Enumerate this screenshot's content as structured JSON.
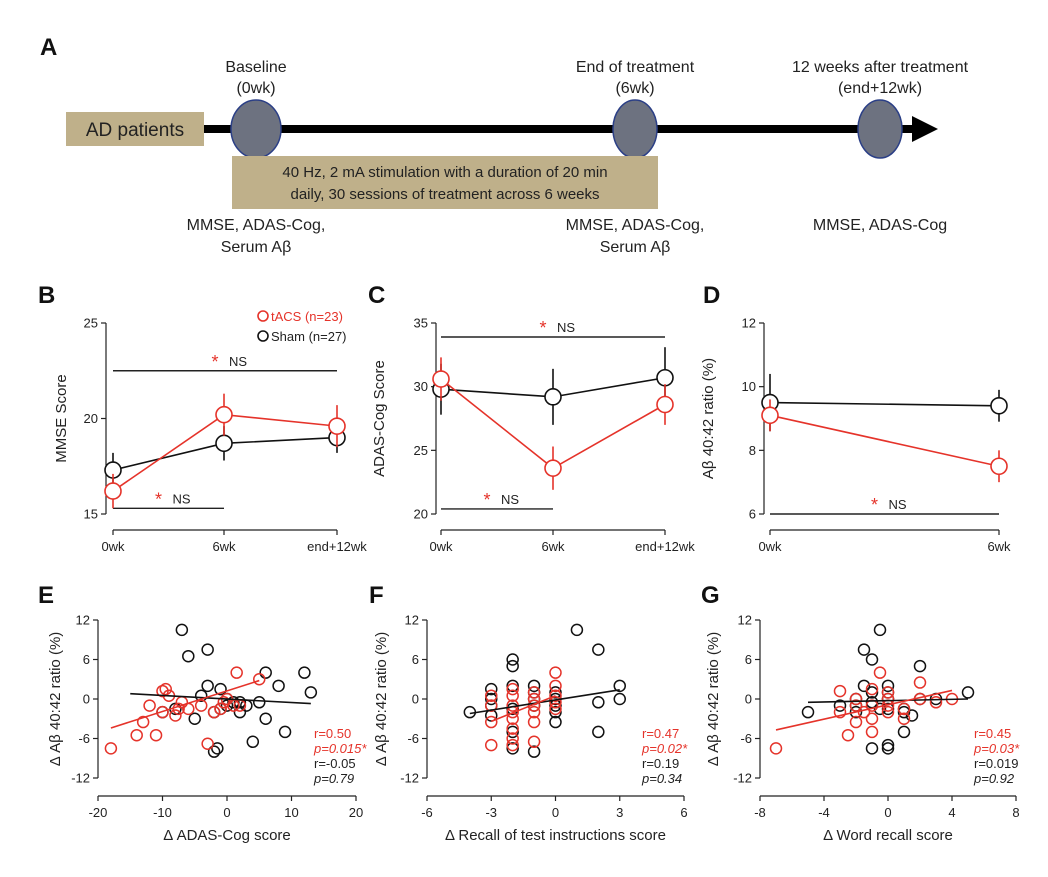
{
  "colors": {
    "tacs": "#e5332a",
    "sham": "#111111",
    "box": "#bfb08a",
    "node": "#6d7280",
    "node_edge": "#2b3f86"
  },
  "timeline": {
    "letter": "A",
    "patients_label": "AD patients",
    "baseline_title_1": "Baseline",
    "baseline_title_2": "(0wk)",
    "end_title_1": "End of treatment",
    "end_title_2": "(6wk)",
    "followup_title_1": "12 weeks after treatment",
    "followup_title_2": "(end+12wk)",
    "stim_line_1": "40 Hz, 2 mA stimulation with a duration of 20 min",
    "stim_line_2": "daily, 30 sessions of treatment across 6 weeks",
    "baseline_meas_1": "MMSE, ADAS-Cog,",
    "baseline_meas_2": "Serum Aβ",
    "end_meas_1": "MMSE, ADAS-Cog,",
    "end_meas_2": "Serum Aβ",
    "followup_meas": "MMSE, ADAS-Cog"
  },
  "legend": {
    "tacs": "tACS (n=23)",
    "sham": "Sham (n=27)"
  },
  "stats": {
    "star": "*",
    "ns": "NS"
  },
  "chart_data": [
    {
      "panel": "B",
      "type": "line",
      "ylabel": "MMSE Score",
      "categories": [
        "0wk",
        "6wk",
        "end+12wk"
      ],
      "ylim": [
        15,
        25
      ],
      "yticks": [
        15,
        20,
        25
      ],
      "series": [
        {
          "name": "tACS (n=23)",
          "values": [
            16.2,
            20.2,
            19.6
          ],
          "err": [
            0.9,
            1.1,
            1.1
          ]
        },
        {
          "name": "Sham (n=27)",
          "values": [
            17.3,
            18.7,
            19.0
          ],
          "err": [
            0.9,
            0.9,
            0.8
          ]
        }
      ],
      "brackets": [
        {
          "from": 0,
          "to": 2,
          "level": 22.5,
          "star": "*",
          "ns": "NS"
        },
        {
          "from": 0,
          "to": 1,
          "level": 15.3,
          "star": "*",
          "ns": "NS"
        }
      ]
    },
    {
      "panel": "C",
      "type": "line",
      "ylabel": "ADAS-Cog Score",
      "categories": [
        "0wk",
        "6wk",
        "end+12wk"
      ],
      "ylim": [
        20,
        35
      ],
      "yticks": [
        20,
        25,
        30,
        35
      ],
      "series": [
        {
          "name": "tACS (n=23)",
          "values": [
            30.6,
            23.6,
            28.6
          ],
          "err": [
            1.7,
            1.7,
            1.6
          ]
        },
        {
          "name": "Sham (n=27)",
          "values": [
            29.8,
            29.2,
            30.7
          ],
          "err": [
            2.0,
            2.2,
            2.4
          ]
        }
      ],
      "brackets": [
        {
          "from": 0,
          "to": 2,
          "level": 33.9,
          "star": "*",
          "ns": "NS"
        },
        {
          "from": 0,
          "to": 1,
          "level": 20.4,
          "star": "*",
          "ns": "NS"
        }
      ]
    },
    {
      "panel": "D",
      "type": "line",
      "ylabel": "Aβ 40:42 ratio (%)",
      "categories": [
        "0wk",
        "6wk"
      ],
      "ylim": [
        6,
        12
      ],
      "yticks": [
        6,
        8,
        10,
        12
      ],
      "series": [
        {
          "name": "tACS (n=23)",
          "values": [
            9.1,
            7.5
          ],
          "err": [
            0.5,
            0.5
          ]
        },
        {
          "name": "Sham (n=27)",
          "values": [
            9.5,
            9.4
          ],
          "err": [
            0.9,
            0.5
          ]
        }
      ],
      "brackets": [
        {
          "from": 0,
          "to": 1,
          "level": 6.0,
          "star": "*",
          "ns": "NS"
        }
      ]
    },
    {
      "panel": "E",
      "type": "scatter",
      "ylabel": "Δ Aβ 40:42 ratio (%)",
      "xlabel": "Δ ADAS-Cog score",
      "xlim": [
        -20,
        20
      ],
      "xticks": [
        -20,
        -10,
        0,
        10,
        20
      ],
      "ylim": [
        -12,
        12
      ],
      "yticks": [
        -12,
        -6,
        0,
        6,
        12
      ],
      "series": [
        {
          "name": "tACS (n=23)",
          "points": [
            [
              -18,
              -7.5
            ],
            [
              -14,
              -5.5
            ],
            [
              -13,
              -3.5
            ],
            [
              -12,
              -1
            ],
            [
              -11,
              -5.5
            ],
            [
              -10,
              1.2
            ],
            [
              -10,
              -2
            ],
            [
              -9.5,
              1.5
            ],
            [
              -9,
              0.5
            ],
            [
              -8,
              -2.5
            ],
            [
              -7.5,
              -1.5
            ],
            [
              -7,
              -0.5
            ],
            [
              -6,
              -1.5
            ],
            [
              -4,
              -1
            ],
            [
              -3,
              -6.8
            ],
            [
              -2,
              -2
            ],
            [
              -1,
              -1.5
            ],
            [
              -0.5,
              -0.5
            ],
            [
              0,
              0
            ],
            [
              1,
              -1
            ],
            [
              1.5,
              4
            ],
            [
              2,
              -1
            ],
            [
              5,
              3
            ]
          ],
          "fit": [
            [
              -18,
              -4.4
            ],
            [
              5,
              2.8
            ]
          ]
        },
        {
          "name": "Sham (n=27)",
          "points": [
            [
              -10,
              -2
            ],
            [
              -7,
              10.5
            ],
            [
              -6,
              6.5
            ],
            [
              -5,
              -3
            ],
            [
              -4,
              0.5
            ],
            [
              -3,
              7.5
            ],
            [
              -3,
              2
            ],
            [
              -2,
              -8
            ],
            [
              -2,
              -2
            ],
            [
              -1.5,
              -7.5
            ],
            [
              -1,
              1.5
            ],
            [
              -1,
              -1.5
            ],
            [
              0,
              0
            ],
            [
              0,
              -1
            ],
            [
              1,
              -0.5
            ],
            [
              2,
              -0.5
            ],
            [
              2,
              -2
            ],
            [
              3,
              -1
            ],
            [
              4,
              -6.5
            ],
            [
              5,
              -0.5
            ],
            [
              6,
              -3
            ],
            [
              6,
              4
            ],
            [
              8,
              2
            ],
            [
              9,
              -5
            ],
            [
              12,
              4
            ],
            [
              13,
              1
            ],
            [
              -8,
              -1.5
            ]
          ],
          "fit": [
            [
              -15,
              0.8
            ],
            [
              13,
              -0.7
            ]
          ]
        }
      ],
      "stats": [
        {
          "r": "r=0.50",
          "p": "p=0.015*"
        },
        {
          "r": "r=-0.05",
          "p": "p=0.79"
        }
      ]
    },
    {
      "panel": "F",
      "type": "scatter",
      "ylabel": "Δ Aβ 40:42 ratio (%)",
      "xlabel": "Δ Recall of test instructions score",
      "xlim": [
        -6,
        6
      ],
      "xticks": [
        -6,
        -3,
        0,
        3,
        6
      ],
      "ylim": [
        -12,
        12
      ],
      "yticks": [
        -12,
        -6,
        0,
        6,
        12
      ],
      "series": [
        {
          "name": "tACS (n=23)",
          "points": [
            [
              -3,
              -3.5
            ],
            [
              -3,
              -7
            ],
            [
              -3,
              0.5
            ],
            [
              -2,
              1.5
            ],
            [
              -2,
              0.5
            ],
            [
              -2,
              -1
            ],
            [
              -2,
              -3
            ],
            [
              -2,
              -4.5
            ],
            [
              -2,
              -6
            ],
            [
              -2,
              -7
            ],
            [
              -1,
              -1
            ],
            [
              -1,
              -2
            ],
            [
              -1,
              -3.5
            ],
            [
              -1,
              1
            ],
            [
              -1,
              -6.5
            ],
            [
              0,
              2
            ],
            [
              0,
              4
            ],
            [
              0,
              -0.5
            ],
            [
              0,
              -1.5
            ],
            [
              0,
              0.5
            ],
            [
              -2,
              -2
            ],
            [
              -3,
              -1
            ],
            [
              -1,
              0
            ]
          ],
          "fit": [
            [
              -3,
              -3.4
            ],
            [
              0,
              0.5
            ]
          ]
        },
        {
          "name": "Sham (n=27)",
          "points": [
            [
              -4,
              -2
            ],
            [
              -3,
              1.5
            ],
            [
              -3,
              0
            ],
            [
              -3,
              -1
            ],
            [
              -2,
              6
            ],
            [
              -2,
              5
            ],
            [
              -2,
              2
            ],
            [
              -2,
              -1.5
            ],
            [
              -2,
              -7.5
            ],
            [
              -1,
              2
            ],
            [
              -1,
              0
            ],
            [
              -1,
              -1
            ],
            [
              -1,
              -8
            ],
            [
              0,
              -1
            ],
            [
              0,
              -2
            ],
            [
              0,
              -3.5
            ],
            [
              0,
              0
            ],
            [
              1,
              10.5
            ],
            [
              2,
              -0.5
            ],
            [
              2,
              -5
            ],
            [
              2,
              7.5
            ],
            [
              3,
              0
            ],
            [
              3,
              2
            ],
            [
              -1,
              1
            ],
            [
              0,
              1
            ],
            [
              -2,
              -5
            ],
            [
              -3,
              -2.5
            ]
          ],
          "fit": [
            [
              -4,
              -2.2
            ],
            [
              3,
              1.4
            ]
          ]
        }
      ],
      "stats": [
        {
          "r": "r=0.47",
          "p": "p=0.02*"
        },
        {
          "r": "r=0.19",
          "p": "p=0.34"
        }
      ]
    },
    {
      "panel": "G",
      "type": "scatter",
      "ylabel": "Δ Aβ 40:42 ratio (%)",
      "xlabel": "Δ Word recall score",
      "xlim": [
        -8,
        8
      ],
      "xticks": [
        -8,
        -4,
        0,
        4,
        8
      ],
      "ylim": [
        -12,
        12
      ],
      "yticks": [
        -12,
        -6,
        0,
        6,
        12
      ],
      "series": [
        {
          "name": "tACS (n=23)",
          "points": [
            [
              -7,
              -7.5
            ],
            [
              -3,
              1.2
            ],
            [
              -3,
              -2
            ],
            [
              -2.5,
              -5.5
            ],
            [
              -2,
              -3.5
            ],
            [
              -2,
              0
            ],
            [
              -2,
              -1
            ],
            [
              -1.5,
              -2
            ],
            [
              -1,
              -3
            ],
            [
              -1,
              -1
            ],
            [
              -1,
              -5
            ],
            [
              -0.5,
              4
            ],
            [
              0,
              1
            ],
            [
              0,
              -1
            ],
            [
              0,
              0
            ],
            [
              0,
              -2
            ],
            [
              1,
              -1.5
            ],
            [
              1,
              -3
            ],
            [
              2,
              2.5
            ],
            [
              2,
              0
            ],
            [
              3,
              -0.5
            ],
            [
              4,
              0
            ],
            [
              -1,
              1.5
            ]
          ],
          "fit": [
            [
              -7,
              -4.7
            ],
            [
              4,
              1.3
            ]
          ]
        },
        {
          "name": "Sham (n=27)",
          "points": [
            [
              -5,
              -2
            ],
            [
              -2,
              0
            ],
            [
              -2,
              -2
            ],
            [
              -1.5,
              2
            ],
            [
              -1.5,
              7.5
            ],
            [
              -1,
              6
            ],
            [
              -1,
              -7.5
            ],
            [
              -1,
              1
            ],
            [
              -0.5,
              10.5
            ],
            [
              -0.5,
              -1.5
            ],
            [
              0,
              -7
            ],
            [
              0,
              -7.5
            ],
            [
              0,
              1
            ],
            [
              0,
              -1.5
            ],
            [
              0,
              2
            ],
            [
              1,
              -5
            ],
            [
              1,
              -2
            ],
            [
              1,
              -1.5
            ],
            [
              1.5,
              -2.5
            ],
            [
              2,
              0
            ],
            [
              2,
              5
            ],
            [
              3,
              0
            ],
            [
              5,
              1
            ],
            [
              -3,
              -1
            ],
            [
              -2,
              -1
            ],
            [
              0,
              0
            ],
            [
              -1,
              -0.5
            ]
          ],
          "fit": [
            [
              -5,
              -0.5
            ],
            [
              5,
              0
            ]
          ]
        }
      ],
      "stats": [
        {
          "r": "r=0.45",
          "p": "p=0.03*"
        },
        {
          "r": "r=0.019",
          "p": "p=0.92"
        }
      ]
    }
  ]
}
